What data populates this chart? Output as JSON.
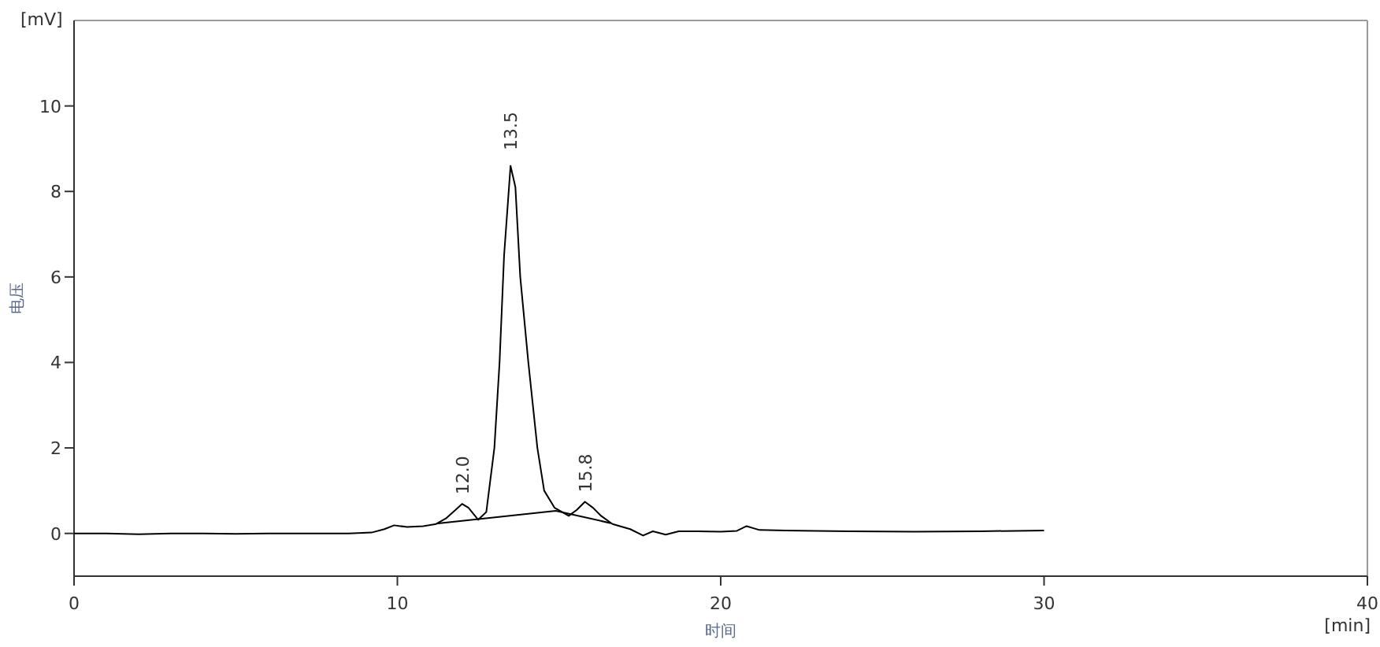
{
  "chart_data": {
    "type": "line",
    "xlabel": "时间",
    "ylabel": "电压",
    "xlim": [
      0,
      40
    ],
    "xticks": [
      0,
      10,
      20,
      30,
      40
    ],
    "ylim": [
      -1,
      12
    ],
    "yticks": [
      0,
      2,
      4,
      6,
      8,
      10
    ],
    "grid": false,
    "marker": "none",
    "line_style": "solid",
    "annotations": [
      {
        "text": "12.0",
        "x": 12.0,
        "y": 0.69
      },
      {
        "text": "13.5",
        "x": 13.5,
        "y": 8.74
      },
      {
        "text": "15.8",
        "x": 15.8,
        "y": 0.74
      },
      "[mV]",
      "[min]"
    ],
    "series": [
      {
        "color": "#000000",
        "x": [
          0,
          1,
          2,
          3,
          4,
          5,
          6,
          7,
          8,
          8.5,
          9.2,
          9.6,
          9.9,
          10.3,
          10.8,
          11.2,
          11.5,
          11.8,
          12.0,
          12.2,
          12.5,
          12.75,
          13.0,
          13.16,
          13.3,
          13.5,
          13.65,
          13.8,
          14.05,
          14.33,
          14.54,
          14.86,
          15.1,
          15.3,
          15.55,
          15.8,
          16.05,
          16.3,
          16.65,
          17.2,
          17.6,
          17.9,
          18.3,
          18.7,
          19.3,
          20.0,
          20.5,
          20.8,
          21.2,
          22,
          24,
          26,
          28,
          30
        ],
        "values": [
          0,
          0,
          -0.02,
          0,
          0,
          -0.01,
          0,
          0,
          0,
          0,
          0.02,
          0.1,
          0.19,
          0.15,
          0.17,
          0.22,
          0.35,
          0.55,
          0.69,
          0.6,
          0.32,
          0.5,
          2,
          4,
          6.5,
          8.6,
          8.1,
          6,
          4,
          2,
          1,
          0.6,
          0.5,
          0.41,
          0.55,
          0.74,
          0.6,
          0.41,
          0.22,
          0.1,
          -0.05,
          0.05,
          -0.03,
          0.05,
          0.05,
          0.04,
          0.06,
          0.17,
          0.08,
          0.07,
          0.05,
          0.04,
          0.05,
          0.07
        ]
      },
      {
        "color": "#000000",
        "x": [
          11.2,
          14.9,
          16.6
        ],
        "values": [
          0.23,
          0.53,
          0.24
        ]
      }
    ]
  }
}
